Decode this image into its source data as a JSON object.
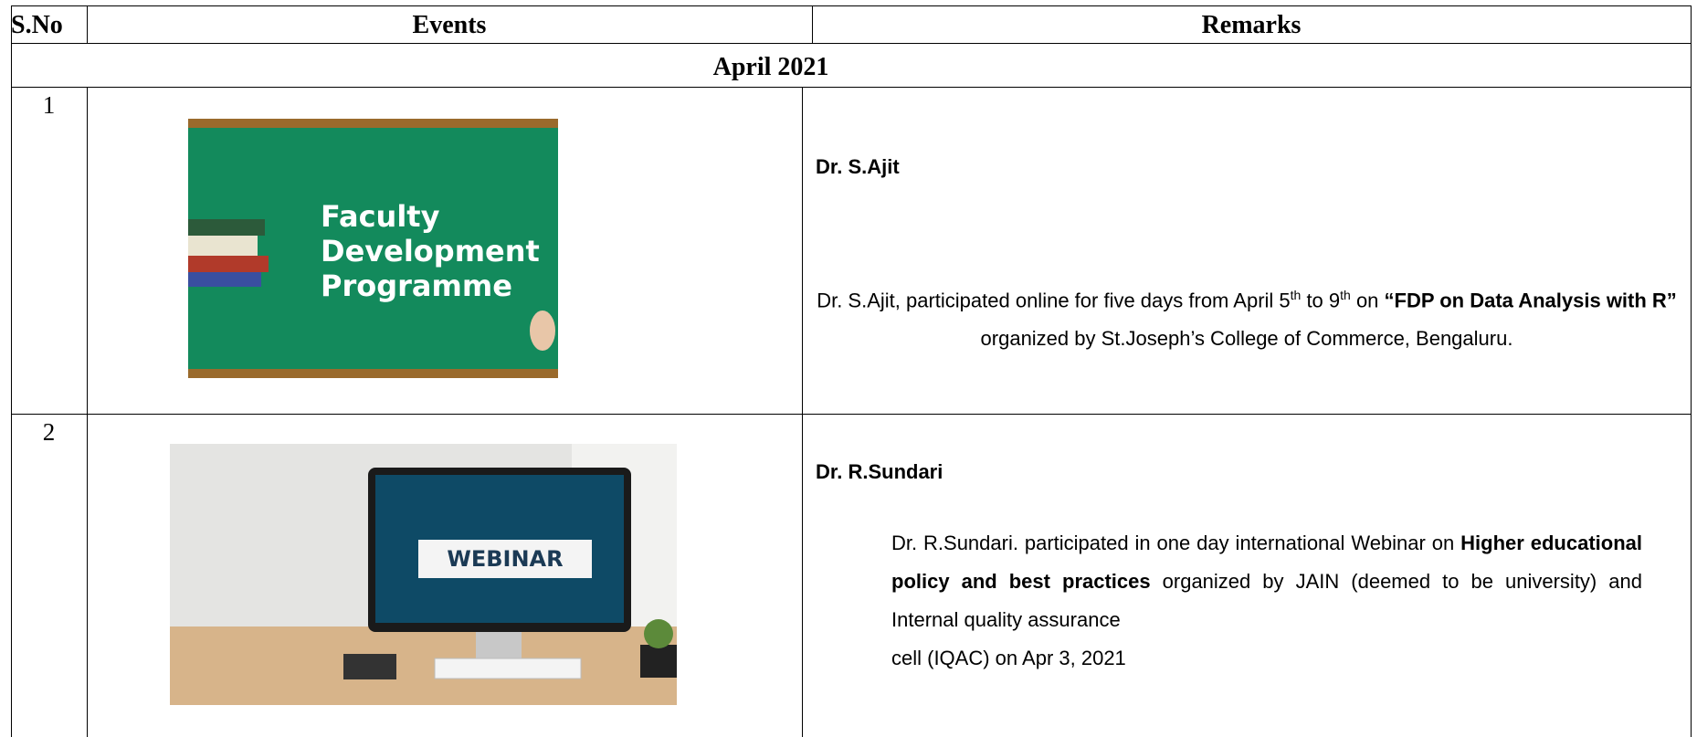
{
  "table": {
    "headers": [
      "S.No",
      "Events",
      "Remarks"
    ],
    "section": "April 2021",
    "rows": [
      {
        "sno": "1",
        "image_text": [
          "Faculty",
          "Development",
          "Programme"
        ],
        "name": "Dr. S.Ajit",
        "body": [
          "Dr. S.Ajit, participated online for five days from April 5",
          "th",
          " to 9",
          "th",
          " on ",
          "“FDP on Data Analysis with R”",
          " organized by St.Joseph’s College of Commerce,  Bengaluru."
        ]
      },
      {
        "sno": "2",
        "image_text": [
          "WEBINAR"
        ],
        "name": "Dr. R.Sundari",
        "body": [
          "Dr. R.Sundari. participated in one day international Webinar on ",
          "Higher educational policy and best practices",
          " organized by JAIN (deemed to be university) and Internal quality assurance",
          "cell (IQAC) on Apr 3, 2021"
        ]
      }
    ]
  }
}
